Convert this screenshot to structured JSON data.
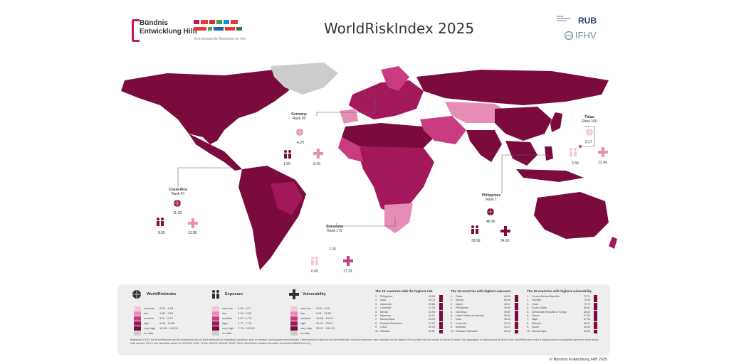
{
  "header": {
    "title": "WorldRiskIndex 2025",
    "logo_line1": "Bündnis",
    "logo_line2": "Entwicklung Hilft",
    "partner_tagline": "Gemeinsam für Menschen in Not",
    "university_short": "RUB",
    "university_full": "RUHR UNIVERSITÄT BOCHUM",
    "institute": "IFHV"
  },
  "colors": {
    "very_high": "#7a0b3c",
    "high": "#a3185a",
    "medium": "#c93d80",
    "low": "#e58db5",
    "very_low": "#f4c6da",
    "no_data": "#cccccc",
    "accent": "#c2185b"
  },
  "callouts": [
    {
      "id": "germany",
      "name": "Germany",
      "rank": "Rank 95",
      "index": "4.28",
      "exposure": "1.99",
      "vulnerability": "9.19"
    },
    {
      "id": "palau",
      "name": "Palau",
      "rank": "Rank 150",
      "index": "2.17",
      "exposure": "0.36",
      "vulnerability": "13.04"
    },
    {
      "id": "costa_rica",
      "name": "Costa Rica",
      "rank": "Rank 47",
      "index": "11.32",
      "exposure": "9.89",
      "vulnerability": "12.95"
    },
    {
      "id": "philippines",
      "name": "Philippines",
      "rank": "Rank 1",
      "index": "46.56",
      "exposure": "39.99",
      "vulnerability": "54.20"
    },
    {
      "id": "botswana",
      "name": "Botswana",
      "rank": "Rank 172",
      "index": "1.25",
      "exposure": "0.09",
      "vulnerability": "17.33"
    }
  ],
  "legend": {
    "worldriskindex": {
      "title": "WorldRiskIndex",
      "rows": [
        {
          "label": "very low",
          "range": "0.00 - 1.84"
        },
        {
          "label": "low",
          "range": "1.85 - 3.20"
        },
        {
          "label": "medium",
          "range": "3.21 - 5.07"
        },
        {
          "label": "high",
          "range": "5.08 - 12.88"
        },
        {
          "label": "very high",
          "range": "12.89 - 100.00"
        },
        {
          "label": "no data",
          "range": ""
        }
      ]
    },
    "exposure": {
      "title": "Exposure",
      "rows": [
        {
          "label": "very low",
          "range": "0.00 - 0.17"
        },
        {
          "label": "low",
          "range": "0.18 - 0.56"
        },
        {
          "label": "medium",
          "range": "0.57 - 1.76"
        },
        {
          "label": "high",
          "range": "1.77 - 7.78"
        },
        {
          "label": "very high",
          "range": "7.79 - 100.00"
        },
        {
          "label": "no data",
          "range": ""
        }
      ]
    },
    "vulnerability": {
      "title": "Vulnerability",
      "rows": [
        {
          "label": "very low",
          "range": "0.00 - 9.90"
        },
        {
          "label": "low",
          "range": "9.91 - 15.87"
        },
        {
          "label": "medium",
          "range": "15.88 - 24.43"
        },
        {
          "label": "high",
          "range": "24.44 - 33.01"
        },
        {
          "label": "very high",
          "range": "33.02 - 100.00"
        },
        {
          "label": "no data",
          "range": ""
        }
      ]
    }
  },
  "top_lists": [
    {
      "title": "The 10 countries with the highest risk",
      "rows": [
        {
          "rank": "1.",
          "country": "Philippines",
          "value": "46.56"
        },
        {
          "rank": "2.",
          "country": "India",
          "value": "40.73"
        },
        {
          "rank": "3.",
          "country": "Indonesia",
          "value": "39.86"
        },
        {
          "rank": "4.",
          "country": "Colombia",
          "value": "37.26"
        },
        {
          "rank": "5.",
          "country": "Mexico",
          "value": "35.96"
        },
        {
          "rank": "6.",
          "country": "Myanmar",
          "value": "34.91"
        },
        {
          "rank": "7.",
          "country": "Mozambique",
          "value": "34.39"
        },
        {
          "rank": "8.",
          "country": "Russian Federation",
          "value": "31.22"
        },
        {
          "rank": "9.",
          "country": "China",
          "value": "30.42"
        },
        {
          "rank": "10.",
          "country": "Pakistan",
          "value": "26.82"
        }
      ]
    },
    {
      "title": "The 10 countries with highest exposure",
      "rows": [
        {
          "rank": "1.",
          "country": "China",
          "value": "64.59"
        },
        {
          "rank": "2.",
          "country": "Mexico",
          "value": "50.08"
        },
        {
          "rank": "3.",
          "country": "Japan",
          "value": "45.67"
        },
        {
          "rank": "4.",
          "country": "Philippines",
          "value": "39.99"
        },
        {
          "rank": "5.",
          "country": "Indonesia",
          "value": "39.89"
        },
        {
          "rank": "6.",
          "country": "United States of America",
          "value": "39.59"
        },
        {
          "rank": "7.",
          "country": "India",
          "value": "35.99"
        },
        {
          "rank": "8.",
          "country": "Colombia",
          "value": "31.54"
        },
        {
          "rank": "9.",
          "country": "Australia",
          "value": "31.21"
        },
        {
          "rank": "10.",
          "country": "Russian Federation",
          "value": "28.15"
        }
      ]
    },
    {
      "title": "The 10 countries with highest vulnerability",
      "rows": [
        {
          "rank": "1.",
          "country": "Central African Republic",
          "value": "73.71"
        },
        {
          "rank": "2.",
          "country": "Somalia",
          "value": "72.45"
        },
        {
          "rank": "3.",
          "country": "Chad",
          "value": "70.70"
        },
        {
          "rank": "4.",
          "country": "South Sudan",
          "value": "69.62"
        },
        {
          "rank": "5.",
          "country": "Democratic Republic of Congo",
          "value": "68.43"
        },
        {
          "rank": "6.",
          "country": "Yemen",
          "value": "67.59"
        },
        {
          "rank": "7.",
          "country": "Niger",
          "value": "67.28"
        },
        {
          "rank": "8.",
          "country": "Ethiopia",
          "value": "66.01"
        },
        {
          "rank": "9.",
          "country": "Sudan",
          "value": "65.69"
        },
        {
          "rank": "10.",
          "country": "Mozambique",
          "value": "65.35"
        }
      ]
    }
  ],
  "footnote": {
    "line1": "Beginning in 2022, the WorldRiskIndex and its components will use fixed thresholds for classifying countries to allow for medium- and long-term trend analysis. These threshold values for the WorldRiskIndex and each dimension were calculated as the median of the quintiles from the results of the last 20 years. The aggregation of values across all levels of the WorldRiskIndex model is always based on unweighted geometric mean values.",
    "line2": "Data sources: IFHV's own calculation based on FAOSTAT, IDMC, OCHA, UNHCR, UNICEF, UNDP, WHO, World Bank, detailed information at www.WorldRiskReport.org."
  },
  "copyright": "© Bündnis Entwicklung Hilft 2025"
}
